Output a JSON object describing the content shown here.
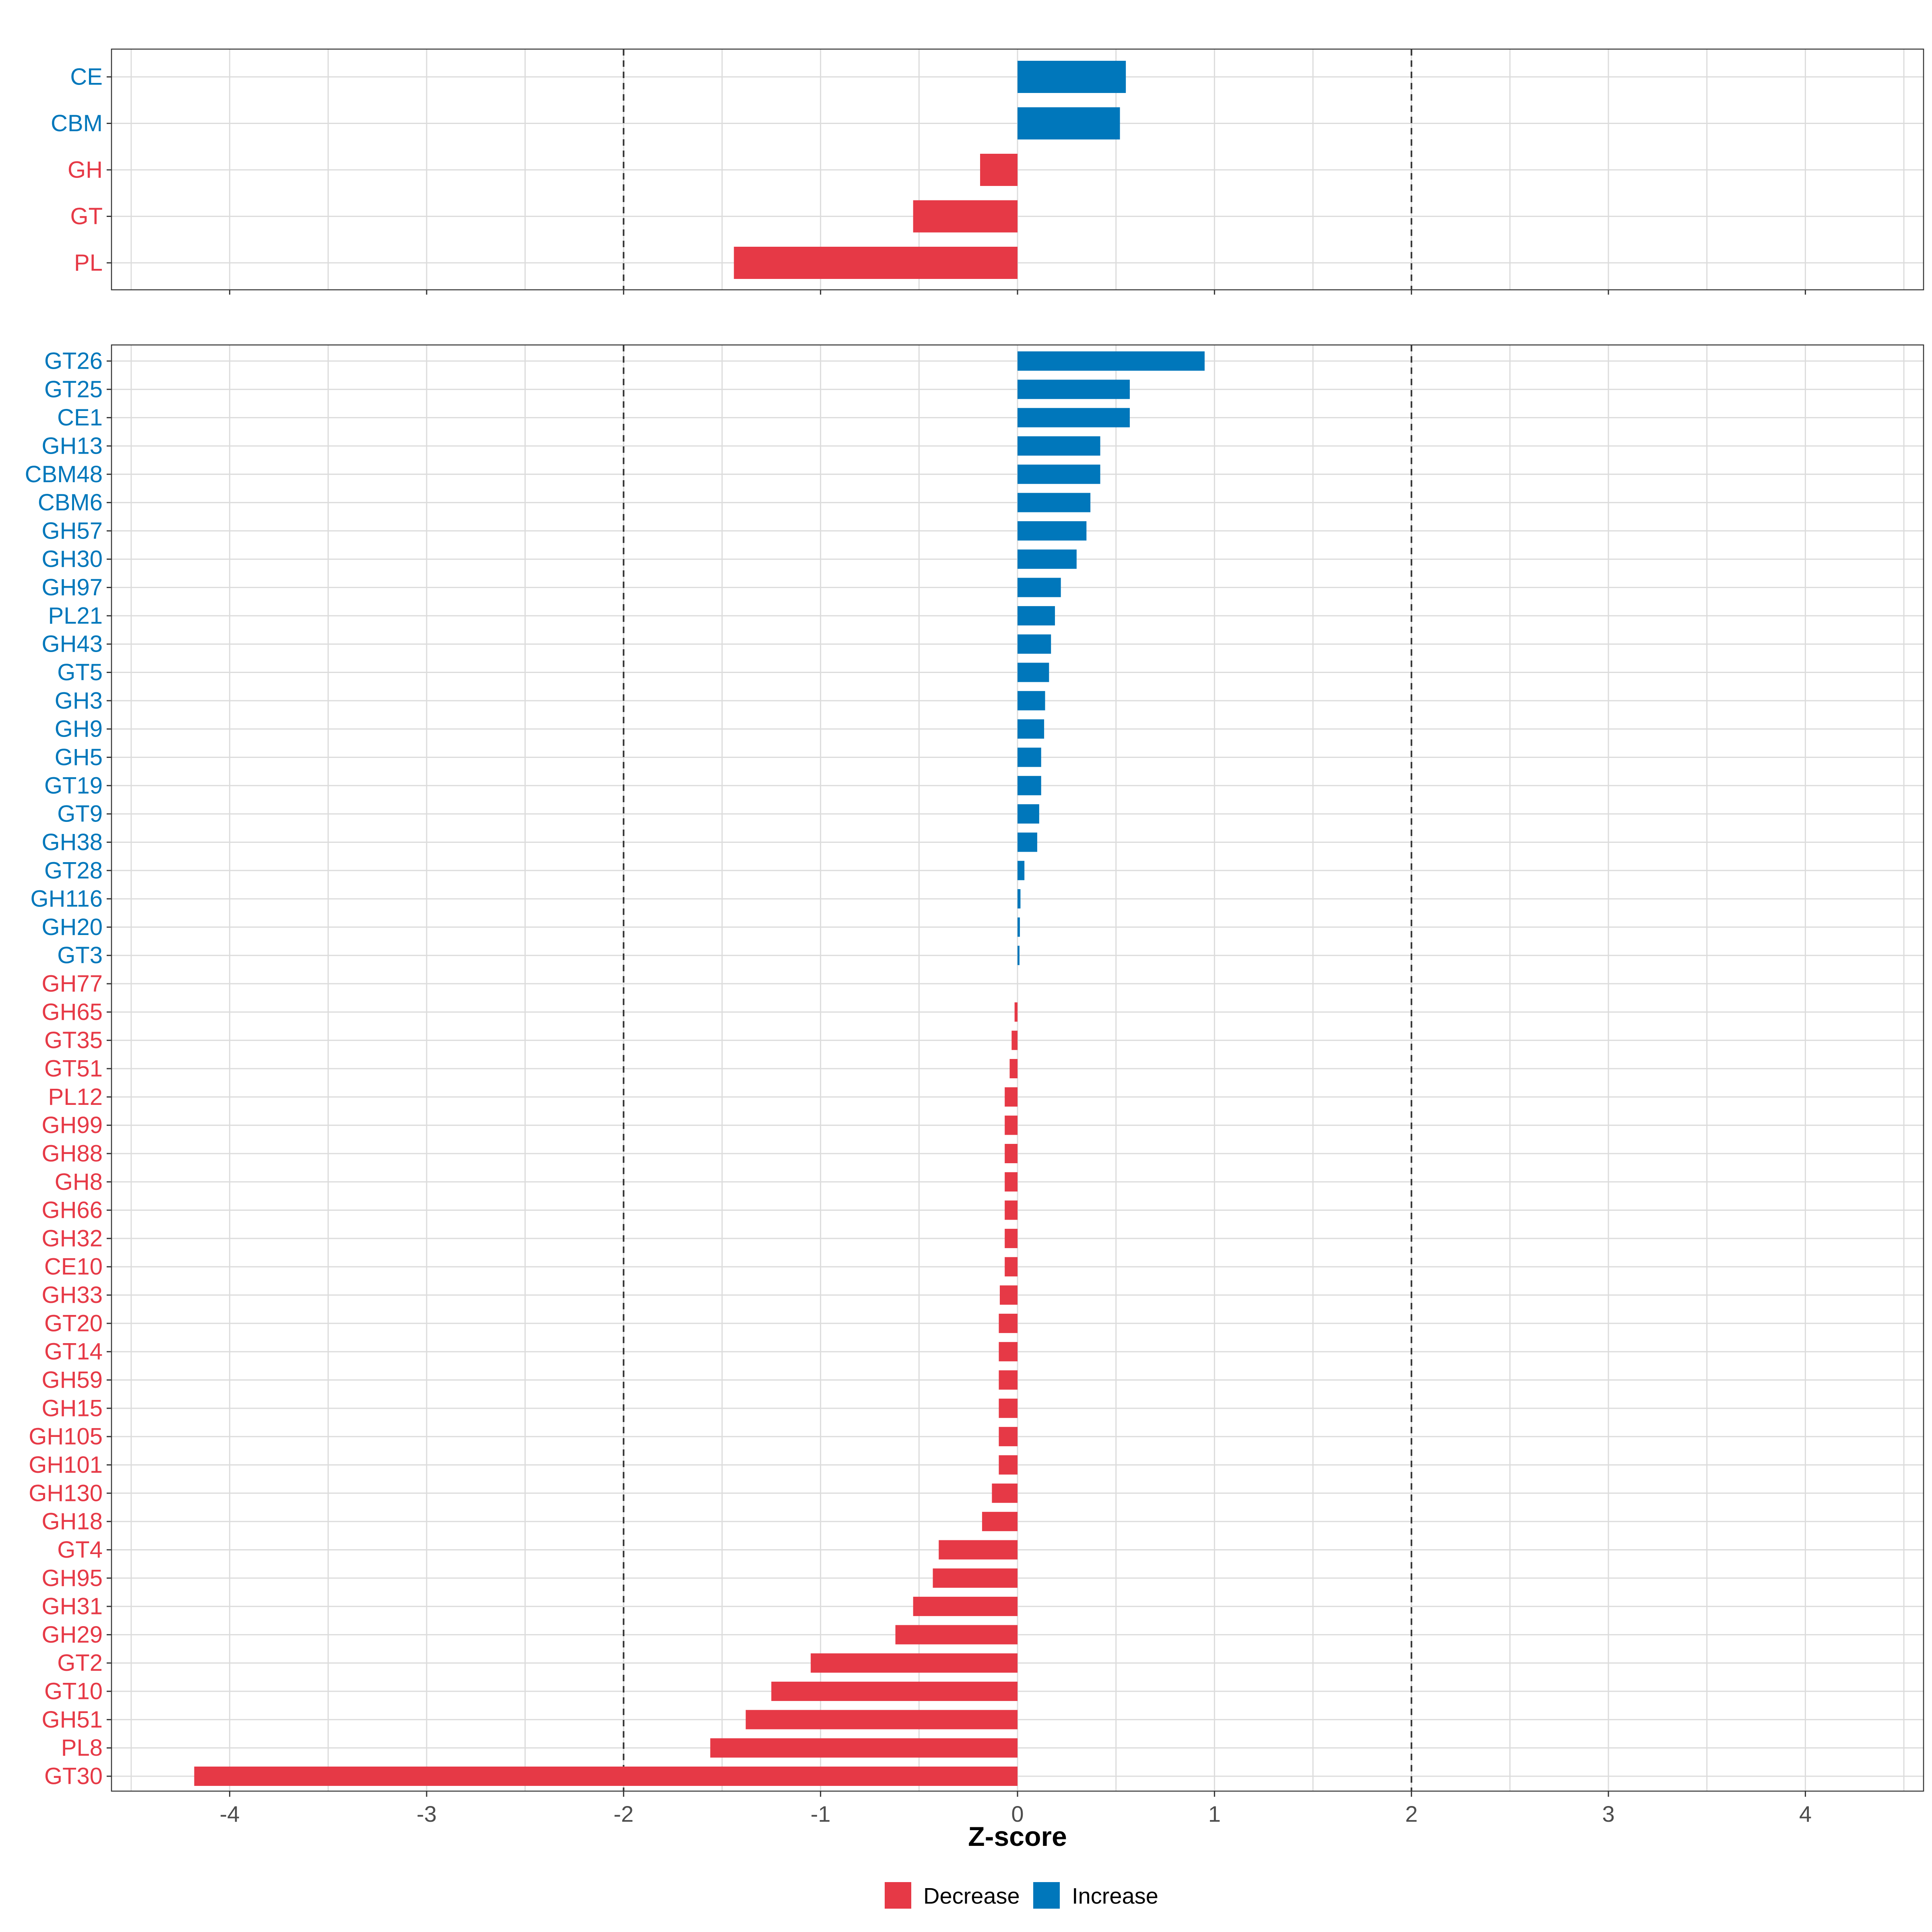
{
  "colors": {
    "increase": "#0077bb",
    "decrease": "#e63946"
  },
  "chart_data": [
    {
      "type": "bar",
      "orientation": "horizontal",
      "panel": "top",
      "categories": [
        "CE",
        "CBM",
        "GH",
        "GT",
        "PL"
      ],
      "values": [
        0.55,
        0.52,
        -0.19,
        -0.53,
        -1.44
      ],
      "xlim": [
        -4.6,
        4.6
      ],
      "thresholds": [
        -2,
        2
      ],
      "grid": true
    },
    {
      "type": "bar",
      "orientation": "horizontal",
      "panel": "bottom",
      "categories": [
        "GT26",
        "GT25",
        "CE1",
        "GH13",
        "CBM48",
        "CBM6",
        "GH57",
        "GH30",
        "GH97",
        "PL21",
        "GH43",
        "GT5",
        "GH3",
        "GH9",
        "GH5",
        "GT19",
        "GT9",
        "GH38",
        "GT28",
        "GH116",
        "GH20",
        "GT3",
        "GH77",
        "GH65",
        "GT35",
        "GT51",
        "PL12",
        "GH99",
        "GH88",
        "GH8",
        "GH66",
        "GH32",
        "CE10",
        "GH33",
        "GT20",
        "GT14",
        "GH59",
        "GH15",
        "GH105",
        "GH101",
        "GH130",
        "GH18",
        "GT4",
        "GH95",
        "GH31",
        "GH29",
        "GT2",
        "GT10",
        "GH51",
        "PL8",
        "GT30"
      ],
      "values": [
        0.95,
        0.57,
        0.57,
        0.42,
        0.42,
        0.37,
        0.35,
        0.3,
        0.22,
        0.19,
        0.17,
        0.16,
        0.14,
        0.135,
        0.12,
        0.12,
        0.11,
        0.1,
        0.035,
        0.015,
        0.012,
        0.01,
        0.0,
        -0.015,
        -0.03,
        -0.04,
        -0.065,
        -0.065,
        -0.065,
        -0.065,
        -0.065,
        -0.065,
        -0.065,
        -0.09,
        -0.095,
        -0.095,
        -0.095,
        -0.095,
        -0.095,
        -0.095,
        -0.13,
        -0.18,
        -0.4,
        -0.43,
        -0.53,
        -0.62,
        -1.05,
        -1.25,
        -1.38,
        -1.56,
        -4.18
      ],
      "xlim": [
        -4.6,
        4.6
      ],
      "thresholds": [
        -2,
        2
      ],
      "grid": true,
      "xticks": [
        -4,
        -3,
        -2,
        -1,
        0,
        1,
        2,
        3,
        4
      ],
      "xlabel": "Z-score"
    }
  ],
  "legend": {
    "position": "bottom",
    "items": [
      {
        "label": "Decrease",
        "color_key": "decrease"
      },
      {
        "label": "Increase",
        "color_key": "increase"
      }
    ]
  }
}
